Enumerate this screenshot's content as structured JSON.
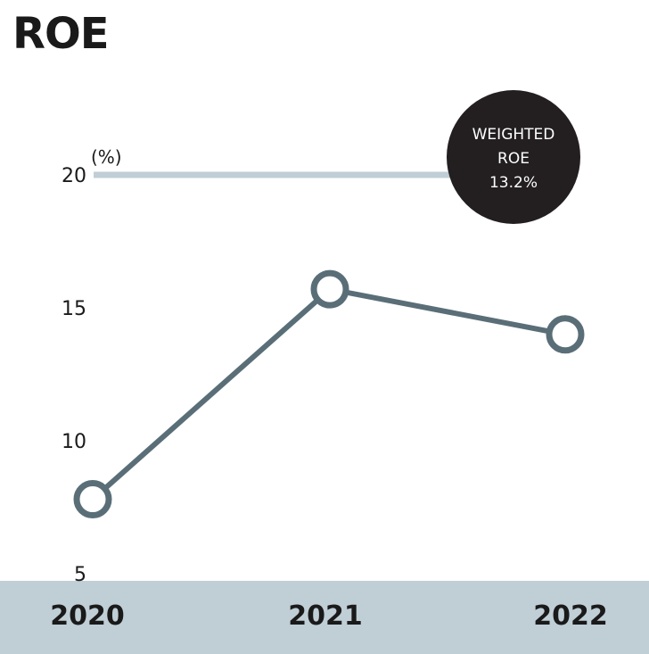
{
  "chart_data": {
    "type": "line",
    "title": "ROE",
    "ylabel": "(%)",
    "categories": [
      "2020",
      "2021",
      "2022"
    ],
    "series": [
      {
        "values": [
          7.8,
          15.7,
          14.0
        ]
      }
    ],
    "reference_line": {
      "value": 20
    },
    "y_ticks": [
      20,
      15,
      10,
      5
    ],
    "ylim": [
      5,
      20
    ],
    "badge": {
      "lines": [
        "WEIGHTED",
        "ROE",
        "13.2%"
      ]
    },
    "colors": {
      "line": "#5a6e78",
      "reference": "#c0ced6",
      "band": "#c0ced6",
      "badge": "#231f20"
    }
  }
}
